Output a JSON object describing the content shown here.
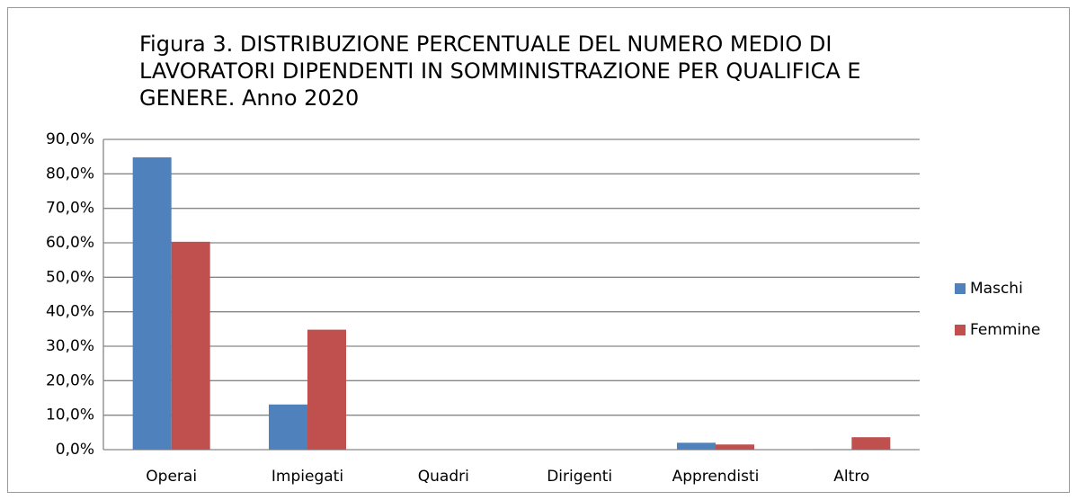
{
  "chart_data": {
    "type": "bar",
    "title": "Figura 3. DISTRIBUZIONE PERCENTUALE DEL NUMERO MEDIO DI LAVORATORI DIPENDENTI IN SOMMINISTRAZIONE PER QUALIFICA E GENERE. Anno 2020",
    "categories": [
      "Operai",
      "Impiegati",
      "Quadri",
      "Dirigenti",
      "Apprendisti",
      "Altro"
    ],
    "series": [
      {
        "name": "Maschi",
        "color": "#4f81bd",
        "values": [
          84.8,
          13.1,
          0,
          0,
          2.0,
          0.1
        ]
      },
      {
        "name": "Femmine",
        "color": "#c0504d",
        "values": [
          60.3,
          34.8,
          0,
          0,
          1.5,
          3.6
        ]
      }
    ],
    "ylim": [
      0,
      90
    ],
    "yticks": [
      {
        "value": 0,
        "label": "0,0%"
      },
      {
        "value": 10,
        "label": "10,0%"
      },
      {
        "value": 20,
        "label": "20,0%"
      },
      {
        "value": 30,
        "label": "30,0%"
      },
      {
        "value": 40,
        "label": "40,0%"
      },
      {
        "value": 50,
        "label": "50,0%"
      },
      {
        "value": 60,
        "label": "60,0%"
      },
      {
        "value": 70,
        "label": "70,0%"
      },
      {
        "value": 80,
        "label": "80,0%"
      },
      {
        "value": 90,
        "label": "90,0%"
      }
    ],
    "grid": true,
    "legend": "right"
  }
}
